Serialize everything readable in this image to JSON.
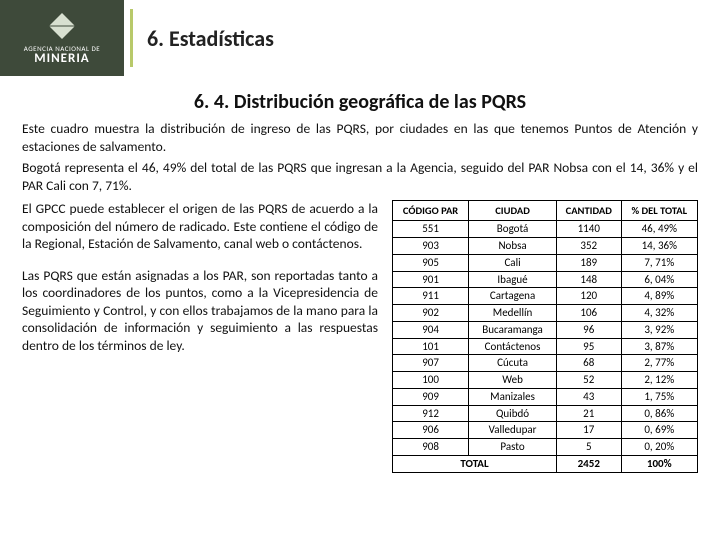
{
  "header": {
    "logo_small": "AGENCIA NACIONAL DE",
    "logo_big": "MINERIA",
    "section_title": "6. Estadísticas"
  },
  "subtitle": "6. 4. Distribución geográfica de las PQRS",
  "intro1": "Este cuadro muestra la distribución de ingreso de las PQRS, por ciudades en las que tenemos Puntos de Atención y estaciones de salvamento.",
  "intro2": "Bogotá representa el 46, 49% del total de las PQRS que ingresan a la Agencia, seguido del PAR Nobsa con el 14, 36% y el PAR Cali con 7, 71%.",
  "para1": "El GPCC puede establecer el origen de las PQRS de acuerdo a la composición del número de radicado. Este contiene el código de la Regional, Estación de Salvamento, canal web o contáctenos.",
  "para2": "Las PQRS que están asignadas a los PAR, son reportadas tanto a los coordinadores de los puntos, como a la Vicepresidencia de Seguimiento y Control, y con ellos trabajamos de la mano para la consolidación de información y seguimiento a las respuestas dentro de los términos de ley.",
  "table": {
    "columns": [
      "CÓDIGO PAR",
      "CIUDAD",
      "CANTIDAD",
      "% DEL TOTAL"
    ],
    "rows": [
      [
        "551",
        "Bogotá",
        "1140",
        "46, 49%"
      ],
      [
        "903",
        "Nobsa",
        "352",
        "14, 36%"
      ],
      [
        "905",
        "Cali",
        "189",
        "7, 71%"
      ],
      [
        "901",
        "Ibagué",
        "148",
        "6, 04%"
      ],
      [
        "911",
        "Cartagena",
        "120",
        "4, 89%"
      ],
      [
        "902",
        "Medellín",
        "106",
        "4, 32%"
      ],
      [
        "904",
        "Bucaramanga",
        "96",
        "3, 92%"
      ],
      [
        "101",
        "Contáctenos",
        "95",
        "3, 87%"
      ],
      [
        "907",
        "Cúcuta",
        "68",
        "2, 77%"
      ],
      [
        "100",
        "Web",
        "52",
        "2, 12%"
      ],
      [
        "909",
        "Manizales",
        "43",
        "1, 75%"
      ],
      [
        "912",
        "Quibdó",
        "21",
        "0, 86%"
      ],
      [
        "906",
        "Valledupar",
        "17",
        "0, 69%"
      ],
      [
        "908",
        "Pasto",
        "5",
        "0, 20%"
      ]
    ],
    "total_label": "TOTAL",
    "total_qty": "2452",
    "total_pct": "100%"
  },
  "colors": {
    "logo_bg": "#3e4a3a",
    "divider": "#b8c96a",
    "diamond_fill": "#d8e0d0"
  }
}
